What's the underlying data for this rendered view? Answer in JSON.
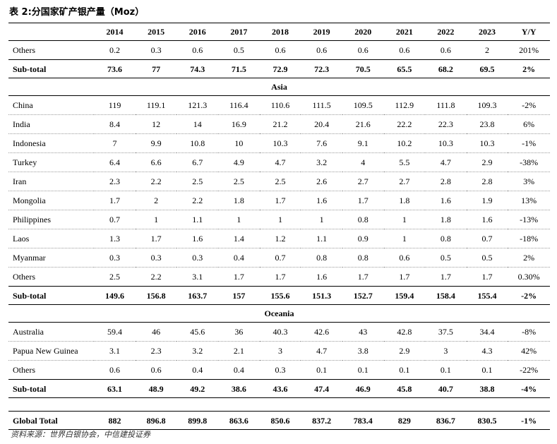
{
  "title": "表 2:分国家矿产银产量（Moz）",
  "columns": [
    "",
    "2014",
    "2015",
    "2016",
    "2017",
    "2018",
    "2019",
    "2020",
    "2021",
    "2022",
    "2023",
    "Y/Y"
  ],
  "rows": [
    {
      "kind": "data",
      "cells": [
        "Others",
        "0.2",
        "0.3",
        "0.6",
        "0.5",
        "0.6",
        "0.6",
        "0.6",
        "0.6",
        "0.6",
        "2",
        "201%"
      ]
    },
    {
      "kind": "subtotal",
      "cells": [
        "Sub-total",
        "73.6",
        "77",
        "74.3",
        "71.5",
        "72.9",
        "72.3",
        "70.5",
        "65.5",
        "68.2",
        "69.5",
        "2%"
      ]
    },
    {
      "kind": "section",
      "label": "Asia"
    },
    {
      "kind": "data",
      "cells": [
        "China",
        "119",
        "119.1",
        "121.3",
        "116.4",
        "110.6",
        "111.5",
        "109.5",
        "112.9",
        "111.8",
        "109.3",
        "-2%"
      ]
    },
    {
      "kind": "data",
      "cells": [
        "India",
        "8.4",
        "12",
        "14",
        "16.9",
        "21.2",
        "20.4",
        "21.6",
        "22.2",
        "22.3",
        "23.8",
        "6%"
      ]
    },
    {
      "kind": "data",
      "cells": [
        "Indonesia",
        "7",
        "9.9",
        "10.8",
        "10",
        "10.3",
        "7.6",
        "9.1",
        "10.2",
        "10.3",
        "10.3",
        "-1%"
      ]
    },
    {
      "kind": "data",
      "cells": [
        "Turkey",
        "6.4",
        "6.6",
        "6.7",
        "4.9",
        "4.7",
        "3.2",
        "4",
        "5.5",
        "4.7",
        "2.9",
        "-38%"
      ]
    },
    {
      "kind": "data",
      "cells": [
        "Iran",
        "2.3",
        "2.2",
        "2.5",
        "2.5",
        "2.5",
        "2.6",
        "2.7",
        "2.7",
        "2.8",
        "2.8",
        "3%"
      ]
    },
    {
      "kind": "data",
      "cells": [
        "Mongolia",
        "1.7",
        "2",
        "2.2",
        "1.8",
        "1.7",
        "1.6",
        "1.7",
        "1.8",
        "1.6",
        "1.9",
        "13%"
      ]
    },
    {
      "kind": "data",
      "cells": [
        "Philippines",
        "0.7",
        "1",
        "1.1",
        "1",
        "1",
        "1",
        "0.8",
        "1",
        "1.8",
        "1.6",
        "-13%"
      ]
    },
    {
      "kind": "data",
      "cells": [
        "Laos",
        "1.3",
        "1.7",
        "1.6",
        "1.4",
        "1.2",
        "1.1",
        "0.9",
        "1",
        "0.8",
        "0.7",
        "-18%"
      ]
    },
    {
      "kind": "data",
      "cells": [
        "Myanmar",
        "0.3",
        "0.3",
        "0.3",
        "0.4",
        "0.7",
        "0.8",
        "0.8",
        "0.6",
        "0.5",
        "0.5",
        "2%"
      ]
    },
    {
      "kind": "data",
      "cells": [
        "Others",
        "2.5",
        "2.2",
        "3.1",
        "1.7",
        "1.7",
        "1.6",
        "1.7",
        "1.7",
        "1.7",
        "1.7",
        "0.30%"
      ]
    },
    {
      "kind": "subtotal",
      "cells": [
        "Sub-total",
        "149.6",
        "156.8",
        "163.7",
        "157",
        "155.6",
        "151.3",
        "152.7",
        "159.4",
        "158.4",
        "155.4",
        "-2%"
      ]
    },
    {
      "kind": "section",
      "label": "Oceania"
    },
    {
      "kind": "data",
      "cells": [
        "Australia",
        "59.4",
        "46",
        "45.6",
        "36",
        "40.3",
        "42.6",
        "43",
        "42.8",
        "37.5",
        "34.4",
        "-8%"
      ]
    },
    {
      "kind": "data",
      "cells": [
        "Papua New Guinea",
        "3.1",
        "2.3",
        "3.2",
        "2.1",
        "3",
        "4.7",
        "3.8",
        "2.9",
        "3",
        "4.3",
        "42%"
      ]
    },
    {
      "kind": "data",
      "cells": [
        "Others",
        "0.6",
        "0.6",
        "0.4",
        "0.4",
        "0.3",
        "0.1",
        "0.1",
        "0.1",
        "0.1",
        "0.1",
        "-22%"
      ]
    },
    {
      "kind": "subtotal",
      "cells": [
        "Sub-total",
        "63.1",
        "48.9",
        "49.2",
        "38.6",
        "43.6",
        "47.4",
        "46.9",
        "45.8",
        "40.7",
        "38.8",
        "-4%"
      ]
    },
    {
      "kind": "spacer"
    },
    {
      "kind": "total",
      "cells": [
        "Global Total",
        "882",
        "896.8",
        "899.8",
        "863.6",
        "850.6",
        "837.2",
        "783.4",
        "829",
        "836.7",
        "830.5",
        "-1%"
      ]
    }
  ],
  "source": "资料来源：世界白银协会，中信建投证券"
}
